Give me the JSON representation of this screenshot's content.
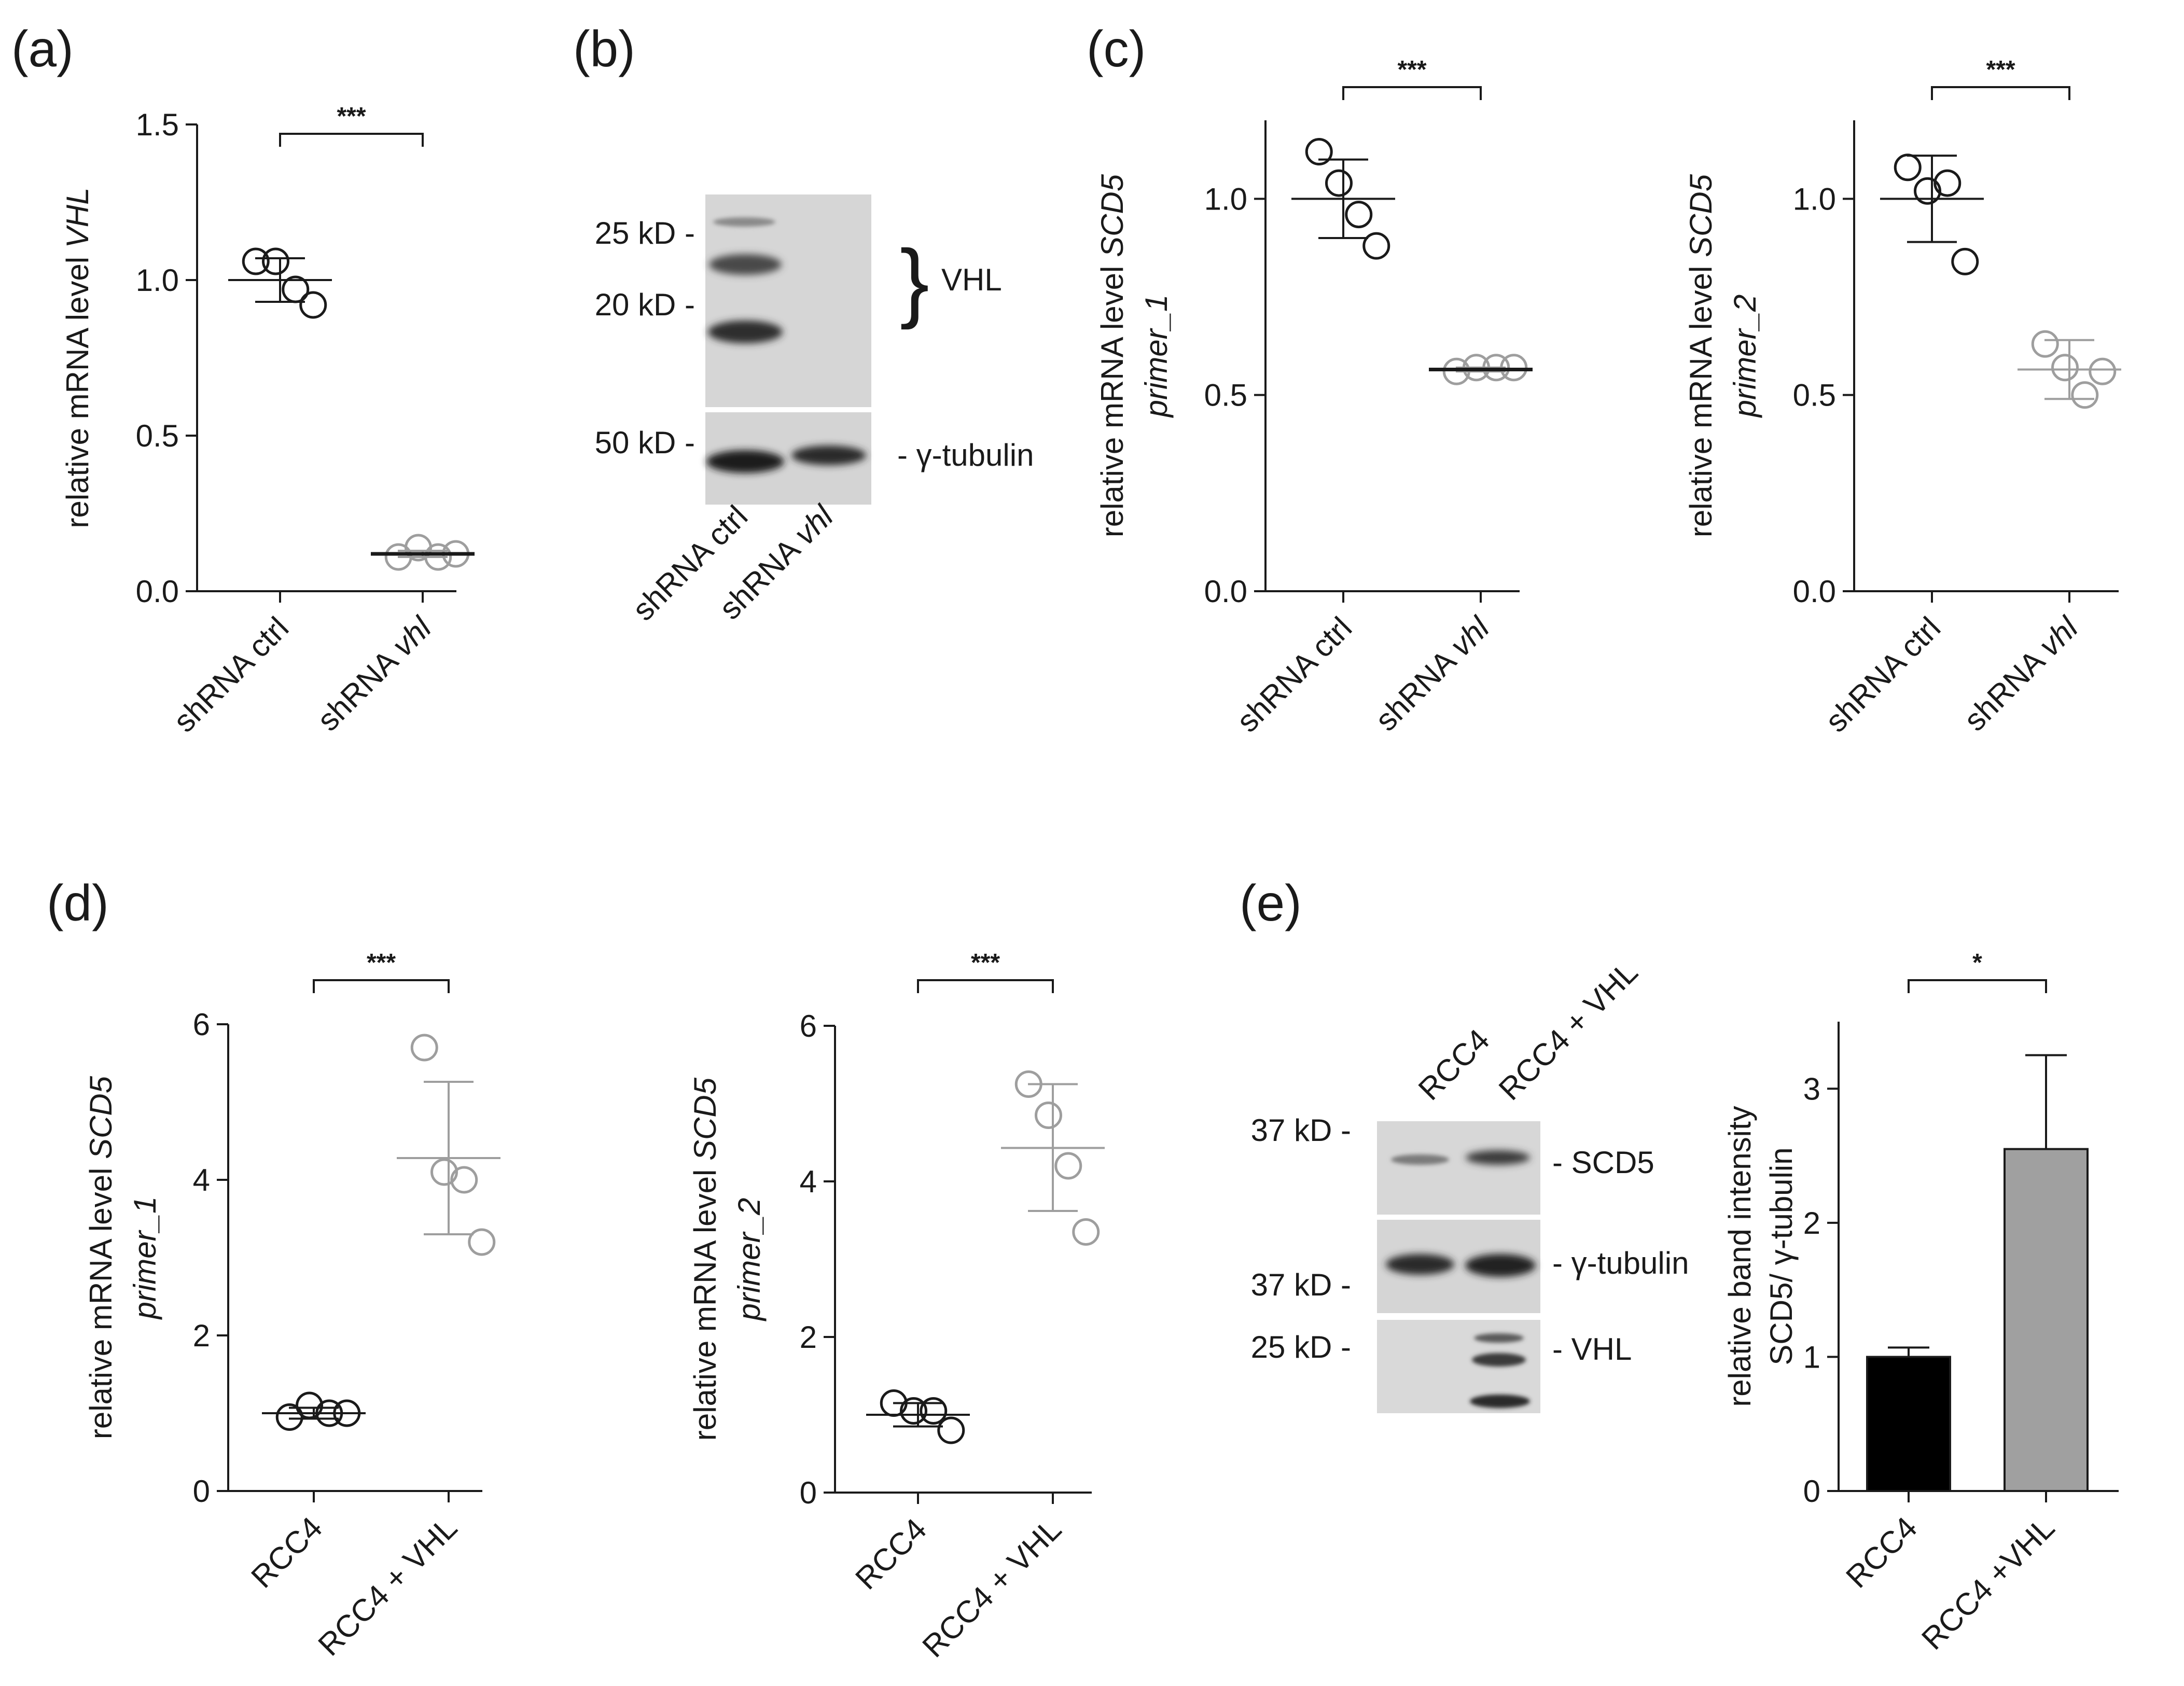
{
  "panel_labels": [
    "(a)",
    "(b)",
    "(c)",
    "(d)",
    "(e)"
  ],
  "chart_data": [
    {
      "id": "a",
      "type": "scatter",
      "ylabel": "relative mRNA level ",
      "ylabel_italic": "VHL",
      "ylabel2": "",
      "categories": [
        "shRNA ctrl",
        "shRNA "
      ],
      "categories_italic": [
        "",
        "vhl"
      ],
      "yticks": [
        "0.0",
        "0.5",
        "1.0",
        "1.5"
      ],
      "ylim": [
        0,
        1.5
      ],
      "series": [
        {
          "name": "shRNA ctrl",
          "color": "#1a1a1a",
          "points": [
            1.06,
            1.06,
            0.97,
            0.92
          ],
          "mean": 1.0,
          "sd_low": 0.93,
          "sd_high": 1.07
        },
        {
          "name": "shRNA vhl",
          "color": "#9e9e9e",
          "points": [
            0.11,
            0.14,
            0.11,
            0.12
          ],
          "mean": 0.12,
          "sd_low": 0.11,
          "sd_high": 0.13
        }
      ],
      "significance": "***"
    },
    {
      "id": "c1",
      "type": "scatter",
      "ylabel": "relative mRNA level ",
      "ylabel_italic": "SCD5",
      "ylabel2": "primer_1",
      "categories": [
        "shRNA ctrl",
        "shRNA "
      ],
      "categories_italic": [
        "",
        "vhl"
      ],
      "yticks": [
        "0.0",
        "0.5",
        "1.0"
      ],
      "ylim": [
        0,
        1.2
      ],
      "series": [
        {
          "name": "shRNA ctrl",
          "color": "#1a1a1a",
          "points": [
            1.12,
            1.04,
            0.96,
            0.88
          ],
          "mean": 1.0,
          "sd_low": 0.9,
          "sd_high": 1.1
        },
        {
          "name": "shRNA vhl",
          "color": "#9e9e9e",
          "points": [
            0.56,
            0.57,
            0.57,
            0.57
          ],
          "mean": 0.565,
          "sd_low": 0.56,
          "sd_high": 0.57
        }
      ],
      "significance": "***"
    },
    {
      "id": "c2",
      "type": "scatter",
      "ylabel": "relative mRNA level ",
      "ylabel_italic": "SCD5",
      "ylabel2": "primer_2",
      "categories": [
        "shRNA ctrl",
        "shRNA "
      ],
      "categories_italic": [
        "",
        "vhl"
      ],
      "yticks": [
        "0.0",
        "0.5",
        "1.0"
      ],
      "ylim": [
        0,
        1.2
      ],
      "series": [
        {
          "name": "shRNA ctrl",
          "color": "#1a1a1a",
          "points": [
            1.08,
            1.02,
            1.04,
            0.84
          ],
          "mean": 1.0,
          "sd_low": 0.89,
          "sd_high": 1.11
        },
        {
          "name": "shRNA vhl",
          "color": "#9e9e9e",
          "points": [
            0.63,
            0.57,
            0.5,
            0.56
          ],
          "mean": 0.565,
          "sd_low": 0.49,
          "sd_high": 0.64
        }
      ],
      "significance": "***"
    },
    {
      "id": "d1",
      "type": "scatter",
      "ylabel": "relative mRNA level ",
      "ylabel_italic": "SCD5",
      "ylabel2": "primer_1",
      "categories": [
        "RCC4",
        "RCC4 + VHL"
      ],
      "categories_italic": [
        "",
        ""
      ],
      "yticks": [
        "0",
        "2",
        "4",
        "6"
      ],
      "ylim": [
        0,
        6
      ],
      "series": [
        {
          "name": "RCC4",
          "color": "#1a1a1a",
          "points": [
            0.95,
            1.1,
            1.0,
            1.0
          ],
          "mean": 1.0,
          "sd_low": 0.93,
          "sd_high": 1.07
        },
        {
          "name": "RCC4 + VHL",
          "color": "#9e9e9e",
          "points": [
            5.7,
            4.1,
            4.0,
            3.2
          ],
          "mean": 4.28,
          "sd_low": 3.3,
          "sd_high": 5.26
        }
      ],
      "significance": "***"
    },
    {
      "id": "d2",
      "type": "scatter",
      "ylabel": "relative mRNA level ",
      "ylabel_italic": "SCD5",
      "ylabel2": "primer_2",
      "categories": [
        "RCC4",
        "RCC4 + VHL"
      ],
      "categories_italic": [
        "",
        ""
      ],
      "yticks": [
        "0",
        "2",
        "4",
        "6"
      ],
      "ylim": [
        0,
        6
      ],
      "series": [
        {
          "name": "RCC4",
          "color": "#1a1a1a",
          "points": [
            1.15,
            1.05,
            1.05,
            0.8
          ],
          "mean": 1.0,
          "sd_low": 0.85,
          "sd_high": 1.15
        },
        {
          "name": "RCC4 + VHL",
          "color": "#9e9e9e",
          "points": [
            5.25,
            4.85,
            4.2,
            3.35
          ],
          "mean": 4.43,
          "sd_low": 3.62,
          "sd_high": 5.25
        }
      ],
      "significance": "***"
    },
    {
      "id": "e",
      "type": "bar",
      "ylabel": "relative band intensity",
      "ylabel2": "SCD5/ γ-tubulin",
      "categories": [
        "RCC4",
        "RCC4 +VHL"
      ],
      "categories_italic": [
        "",
        ""
      ],
      "yticks": [
        "0",
        "1",
        "2",
        "3"
      ],
      "ylim": [
        0,
        3.5
      ],
      "values": [
        1.0,
        2.55
      ],
      "errors_upper": [
        1.07,
        3.25
      ],
      "colors": [
        "#000000",
        "#a0a0a0"
      ],
      "significance": "*"
    }
  ],
  "blot_b": {
    "markers": [
      "25 kD -",
      "20 kD -",
      "50 kD -"
    ],
    "lanes": [
      "shRNA ctrl",
      "shRNA "
    ],
    "lanes_italic": [
      "",
      "vhl"
    ],
    "brace": "}",
    "labels": [
      "VHL",
      "- γ-tubulin"
    ]
  },
  "blot_e": {
    "markers": [
      "37 kD -",
      "37 kD -",
      "25 kD -"
    ],
    "lanes": [
      "RCC4",
      "RCC4  + VHL"
    ],
    "labels": [
      "- SCD5",
      "- γ-tubulin",
      "- VHL"
    ]
  }
}
